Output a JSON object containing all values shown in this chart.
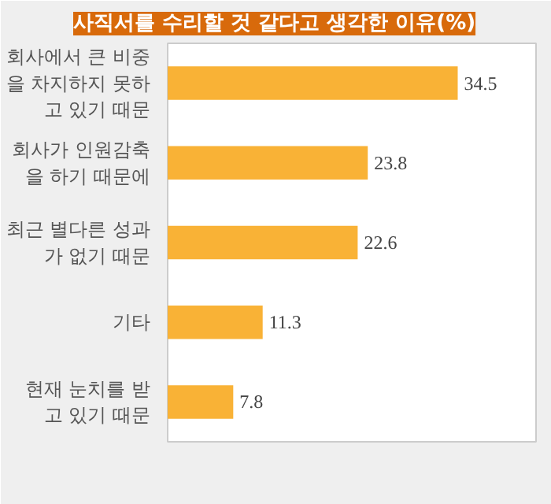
{
  "chart_data": {
    "type": "bar",
    "orientation": "horizontal",
    "title": "사직서를 수리할 것 같다고 생각한 이유(%)",
    "categories": [
      "회사에서 큰 비중\n을 차지하지 못하\n고 있기 때문",
      "회사가 인원감축\n을 하기 때문에",
      "최근 별다른 성과\n가 없기 때문",
      "기타",
      "현재 눈치를 받\n고 있기 때문"
    ],
    "values": [
      34.5,
      23.8,
      22.6,
      11.3,
      7.8
    ],
    "color": "#f9b236",
    "data_labels": true,
    "grid": false
  }
}
